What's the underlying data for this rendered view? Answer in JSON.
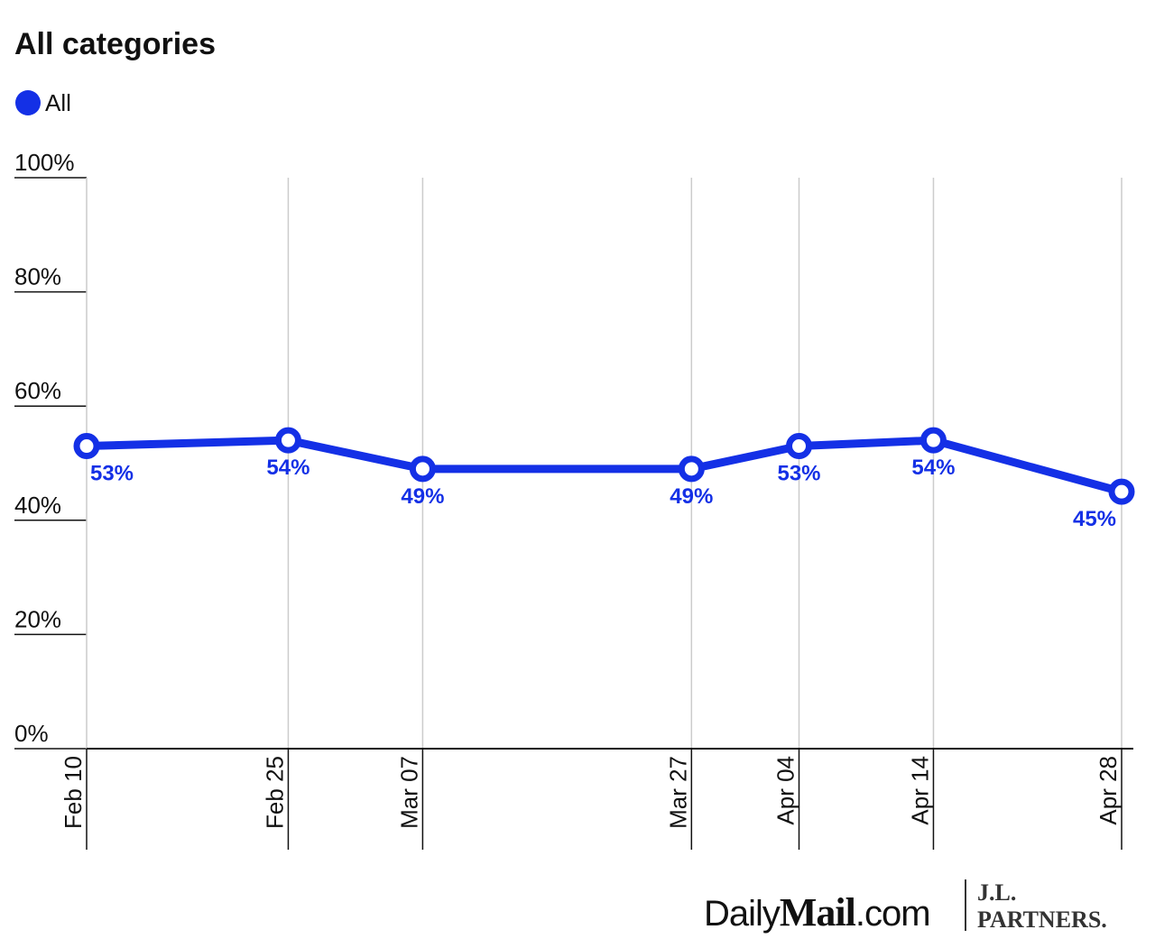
{
  "chart_data": {
    "type": "line",
    "title": "All categories",
    "x": [
      "Feb 10",
      "Feb 25",
      "Mar 07",
      "Mar 27",
      "Apr 04",
      "Apr 14",
      "Apr 28"
    ],
    "series": [
      {
        "name": "All",
        "color": "#1430e6",
        "values": [
          53,
          54,
          49,
          49,
          53,
          54,
          45
        ],
        "value_labels": [
          "53%",
          "54%",
          "49%",
          "49%",
          "53%",
          "54%",
          "45%"
        ]
      }
    ],
    "ylim": [
      0,
      100
    ],
    "yticks": [
      {
        "value": 0,
        "label": "0%"
      },
      {
        "value": 20,
        "label": "20%"
      },
      {
        "value": 40,
        "label": "40%"
      },
      {
        "value": 60,
        "label": "60%"
      },
      {
        "value": 80,
        "label": "80%"
      },
      {
        "value": 100,
        "label": "100%"
      }
    ],
    "grid": true,
    "legend": "top-left"
  },
  "footer": {
    "brand": [
      "Daily",
      "Mail",
      ".com"
    ],
    "partner": [
      "J.L.",
      "PARTNERS."
    ]
  }
}
